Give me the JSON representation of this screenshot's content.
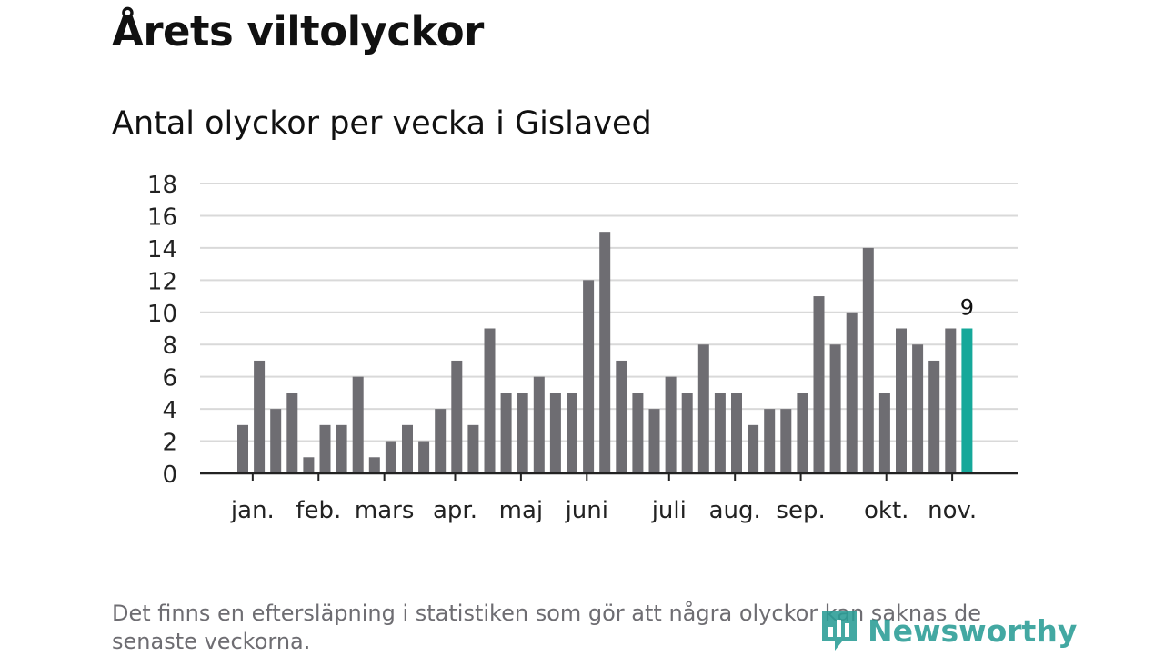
{
  "title": "Årets viltolyckor",
  "subtitle": "Antal olyckor per vecka i Gislaved",
  "footnote": "Det finns en eftersläpning i statistiken som gör att några olyckor kan saknas de senaste veckorna.",
  "logo_text": "Newsworthy",
  "colors": {
    "bar": "#6e6d72",
    "highlight": "#16a89a",
    "grid": "#d9d9d9",
    "axis": "#222222"
  },
  "chart_data": {
    "type": "bar",
    "title": "Antal olyckor per vecka i Gislaved",
    "xlabel": "",
    "ylabel": "",
    "ylim": [
      0,
      18
    ],
    "yticks": [
      0,
      2,
      4,
      6,
      8,
      10,
      12,
      14,
      16,
      18
    ],
    "grid": true,
    "values": [
      3,
      7,
      4,
      5,
      1,
      3,
      3,
      6,
      1,
      2,
      3,
      2,
      4,
      7,
      3,
      9,
      5,
      5,
      6,
      5,
      5,
      12,
      15,
      7,
      5,
      4,
      6,
      5,
      8,
      5,
      5,
      3,
      4,
      4,
      5,
      11,
      8,
      10,
      14,
      5,
      9,
      8,
      7,
      9,
      9
    ],
    "highlight_index": 44,
    "highlight_label": "9",
    "month_labels": [
      {
        "label": "jan.",
        "bar_index": 0.6
      },
      {
        "label": "feb.",
        "bar_index": 4.6
      },
      {
        "label": "mars",
        "bar_index": 8.6
      },
      {
        "label": "apr.",
        "bar_index": 12.9
      },
      {
        "label": "maj",
        "bar_index": 16.9
      },
      {
        "label": "juni",
        "bar_index": 20.9
      },
      {
        "label": "juli",
        "bar_index": 25.9
      },
      {
        "label": "aug.",
        "bar_index": 29.9
      },
      {
        "label": "sep.",
        "bar_index": 33.9
      },
      {
        "label": "okt.",
        "bar_index": 39.1
      },
      {
        "label": "nov.",
        "bar_index": 43.1
      }
    ],
    "month_ticks": [
      0.6,
      4.6,
      8.6,
      12.9,
      16.9,
      20.9,
      25.9,
      29.9,
      33.9,
      39.1,
      43.1
    ]
  }
}
